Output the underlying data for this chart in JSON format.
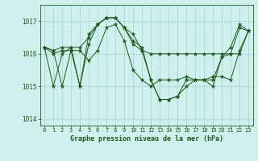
{
  "title": "Graphe pression niveau de la mer (hPa)",
  "x_labels": [
    "0",
    "1",
    "2",
    "3",
    "4",
    "5",
    "6",
    "7",
    "8",
    "9",
    "10",
    "11",
    "12",
    "13",
    "14",
    "15",
    "16",
    "17",
    "18",
    "19",
    "20",
    "21",
    "22",
    "23"
  ],
  "ylim": [
    1013.8,
    1017.5
  ],
  "yticks": [
    1014,
    1015,
    1016,
    1017
  ],
  "background_color": "#cff0ec",
  "grid_color": "#aad8d8",
  "line_color": "#1a5c1a",
  "series": [
    [
      1016.2,
      1016.1,
      1016.2,
      1016.2,
      1016.2,
      1016.5,
      1016.9,
      1017.1,
      1017.1,
      1016.8,
      1016.6,
      1016.1,
      1016.0,
      1016.0,
      1016.0,
      1016.0,
      1016.0,
      1016.0,
      1016.0,
      1016.0,
      1016.0,
      1016.0,
      1016.0,
      1016.7
    ],
    [
      1016.2,
      1016.1,
      1015.0,
      1016.1,
      1015.0,
      1016.6,
      1016.9,
      1017.1,
      1017.1,
      1016.8,
      1016.4,
      1016.2,
      1015.2,
      1014.6,
      1014.6,
      1014.7,
      1015.0,
      1015.2,
      1015.2,
      1015.0,
      1015.9,
      1016.0,
      1016.8,
      1016.7
    ],
    [
      1016.2,
      1015.0,
      1016.0,
      1016.2,
      1015.0,
      1016.3,
      1016.9,
      1017.1,
      1017.1,
      1016.8,
      1016.3,
      1016.1,
      1015.2,
      1014.6,
      1014.6,
      1014.7,
      1015.2,
      1015.2,
      1015.2,
      1015.2,
      1015.9,
      1016.2,
      1016.9,
      1016.7
    ],
    [
      1016.2,
      1016.0,
      1016.1,
      1016.1,
      1016.1,
      1015.8,
      1016.1,
      1016.8,
      1016.9,
      1016.4,
      1015.5,
      1015.2,
      1015.0,
      1015.2,
      1015.2,
      1015.2,
      1015.3,
      1015.2,
      1015.2,
      1015.3,
      1015.3,
      1015.2,
      1016.1,
      1016.7
    ]
  ]
}
